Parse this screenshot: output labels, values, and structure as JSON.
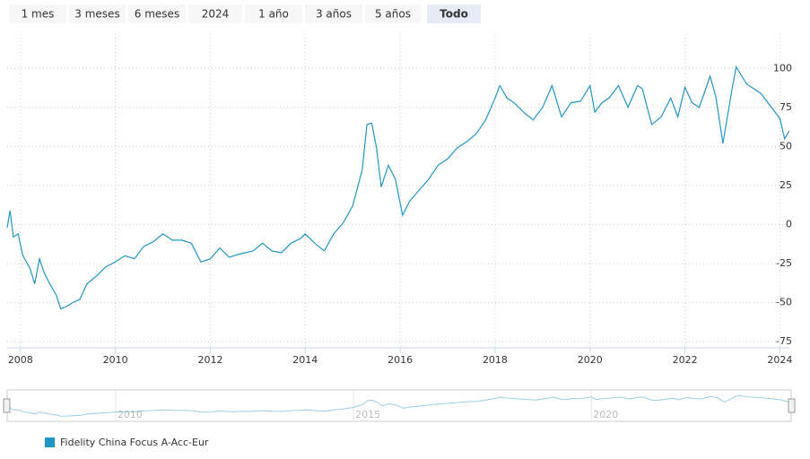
{
  "range_buttons": [
    "1 mes",
    "3 meses",
    "6 meses",
    "2024",
    "1 año",
    "3 años",
    "5 años",
    "Todo"
  ],
  "selected_range": 7,
  "chart_data": {
    "type": "line",
    "series": [
      {
        "name": "Fidelity China Focus A-Acc-Eur",
        "color": "#2196c4",
        "x": [
          2007.72,
          2007.78,
          2007.85,
          2007.95,
          2008.05,
          2008.2,
          2008.3,
          2008.4,
          2008.5,
          2008.6,
          2008.75,
          2008.85,
          2009.0,
          2009.1,
          2009.25,
          2009.4,
          2009.6,
          2009.8,
          2010.0,
          2010.2,
          2010.4,
          2010.6,
          2010.8,
          2011.0,
          2011.2,
          2011.4,
          2011.6,
          2011.8,
          2012.0,
          2012.2,
          2012.4,
          2012.6,
          2012.9,
          2013.1,
          2013.3,
          2013.5,
          2013.7,
          2013.9,
          2014.0,
          2014.2,
          2014.4,
          2014.6,
          2014.8,
          2015.0,
          2015.2,
          2015.3,
          2015.4,
          2015.5,
          2015.6,
          2015.75,
          2015.9,
          2016.05,
          2016.2,
          2016.4,
          2016.6,
          2016.8,
          2017.0,
          2017.2,
          2017.4,
          2017.6,
          2017.8,
          2018.0,
          2018.1,
          2018.25,
          2018.4,
          2018.6,
          2018.8,
          2019.0,
          2019.2,
          2019.4,
          2019.6,
          2019.8,
          2020.0,
          2020.1,
          2020.25,
          2020.4,
          2020.6,
          2020.8,
          2021.0,
          2021.1,
          2021.3,
          2021.5,
          2021.7,
          2021.85,
          2022.0,
          2022.15,
          2022.3,
          2022.53,
          2022.65,
          2022.8,
          2023.0,
          2023.08,
          2023.3,
          2023.6,
          2023.8,
          2024.0,
          2024.1,
          2024.2
        ],
        "values": [
          -2,
          9,
          -8,
          -6,
          -20,
          -28,
          -38,
          -22,
          -31,
          -37,
          -45,
          -54,
          -52,
          -50,
          -48,
          -38,
          -33,
          -27,
          -24,
          -20,
          -22,
          -14,
          -11,
          -6,
          -10,
          -10,
          -12,
          -24,
          -22,
          -15,
          -21,
          -19,
          -17,
          -12,
          -17,
          -18,
          -12,
          -9,
          -6,
          -12,
          -17,
          -6,
          1,
          12,
          35,
          64,
          65,
          49,
          24,
          38,
          29,
          6,
          15,
          22,
          29,
          38,
          42,
          49,
          53,
          58,
          67,
          81,
          89,
          81,
          78,
          72,
          67,
          75,
          89,
          69,
          78,
          79,
          89,
          72,
          78,
          81,
          89,
          75,
          89,
          87,
          64,
          69,
          81,
          69,
          88,
          78,
          75,
          95,
          82,
          52,
          88,
          101,
          90,
          84,
          76,
          68,
          55,
          60
        ]
      }
    ],
    "xlim": [
      2007.72,
      2024.2
    ],
    "xticks": [
      2008,
      2010,
      2012,
      2014,
      2016,
      2018,
      2020,
      2022,
      2024
    ],
    "ylim": [
      -79,
      122
    ],
    "yticks": [
      -75,
      -50,
      -25,
      0,
      25,
      50,
      75,
      100
    ],
    "navigator_ticks": [
      2010,
      2015,
      2020
    ],
    "grid": true
  }
}
